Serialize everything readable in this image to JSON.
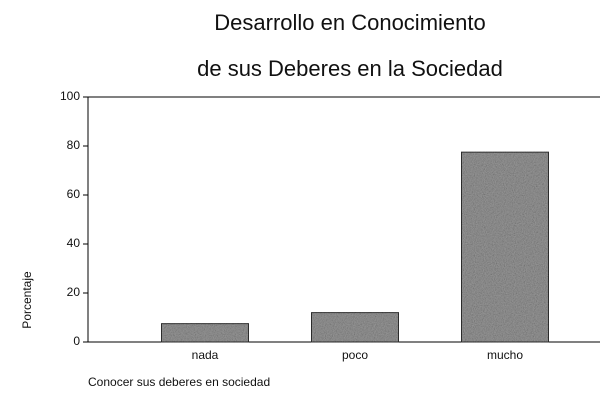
{
  "chart_data": {
    "type": "bar",
    "title": [
      "Desarrollo en Conocimiento",
      "de sus Deberes en la Sociedad"
    ],
    "categories": [
      "nada",
      "poco",
      "mucho"
    ],
    "values": [
      7.5,
      12,
      77.5
    ],
    "color": "#9a9a9a",
    "ylim": [
      0,
      100
    ],
    "yticks": [
      0,
      20,
      40,
      60,
      80,
      100
    ],
    "x_label": "Conocer sus deberes en sociedad",
    "y_label": "Porcentaje"
  }
}
